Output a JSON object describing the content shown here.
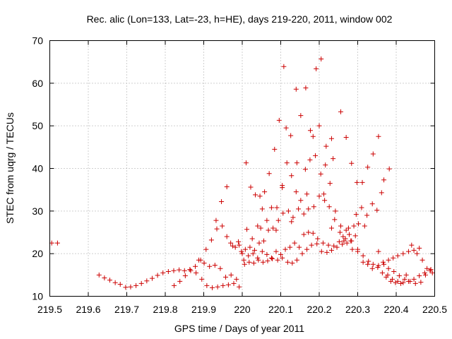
{
  "chart_data": {
    "type": "scatter",
    "title": "Rec. alic (Lon=133, Lat=-23, h=HE), days 219-220, 2011, window 002",
    "xlabel": "GPS time / Days of year 2011",
    "ylabel": "STEC from uqrg / TECUs",
    "xlim": [
      219.5,
      220.5
    ],
    "ylim": [
      10,
      70
    ],
    "xticks": [
      "219.5",
      "219.6",
      "219.7",
      "219.8",
      "219.9",
      "220",
      "220.1",
      "220.2",
      "220.3",
      "220.4",
      "220.5"
    ],
    "yticks": [
      "10",
      "20",
      "30",
      "40",
      "50",
      "60",
      "70"
    ],
    "grid": true,
    "marker": "+",
    "color": "#cc0000",
    "points": [
      [
        219.505,
        22.5
      ],
      [
        219.52,
        22.5
      ],
      [
        219.628,
        15.0
      ],
      [
        219.642,
        14.3
      ],
      [
        219.656,
        13.8
      ],
      [
        219.67,
        13.2
      ],
      [
        219.683,
        12.8
      ],
      [
        219.697,
        12.1
      ],
      [
        219.71,
        12.2
      ],
      [
        219.724,
        12.5
      ],
      [
        219.738,
        13.0
      ],
      [
        219.752,
        13.6
      ],
      [
        219.766,
        14.2
      ],
      [
        219.78,
        14.9
      ],
      [
        219.794,
        15.5
      ],
      [
        219.808,
        15.8
      ],
      [
        219.822,
        16.0
      ],
      [
        219.836,
        16.2
      ],
      [
        219.85,
        16.0
      ],
      [
        219.864,
        16.3
      ],
      [
        219.878,
        17.0
      ],
      [
        219.892,
        18.5
      ],
      [
        219.906,
        21.0
      ],
      [
        219.92,
        23.2
      ],
      [
        219.934,
        25.8
      ],
      [
        219.946,
        32.2
      ],
      [
        219.96,
        35.7
      ],
      [
        219.823,
        12.5
      ],
      [
        219.838,
        13.5
      ],
      [
        219.852,
        14.8
      ],
      [
        219.866,
        16.0
      ],
      [
        219.88,
        15.5
      ],
      [
        219.895,
        14.0
      ],
      [
        219.908,
        12.5
      ],
      [
        219.922,
        12.0
      ],
      [
        219.936,
        12.2
      ],
      [
        219.95,
        12.5
      ],
      [
        219.964,
        12.7
      ],
      [
        219.978,
        13.0
      ],
      [
        219.992,
        12.2
      ],
      [
        219.887,
        18.5
      ],
      [
        219.901,
        17.8
      ],
      [
        219.915,
        17.0
      ],
      [
        219.929,
        17.3
      ],
      [
        219.943,
        16.5
      ],
      [
        219.957,
        14.5
      ],
      [
        219.971,
        15.0
      ],
      [
        219.985,
        14.0
      ],
      [
        219.932,
        27.8
      ],
      [
        219.948,
        26.5
      ],
      [
        219.96,
        24.0
      ],
      [
        219.97,
        22.5
      ],
      [
        219.982,
        21.5
      ],
      [
        219.992,
        22.0
      ],
      [
        220.0,
        20.0
      ],
      [
        219.975,
        21.8
      ],
      [
        219.99,
        22.8
      ],
      [
        219.998,
        20.5
      ],
      [
        220.01,
        41.3
      ],
      [
        220.022,
        35.6
      ],
      [
        220.034,
        33.8
      ],
      [
        220.046,
        33.5
      ],
      [
        220.058,
        34.5
      ],
      [
        220.07,
        38.8
      ],
      [
        220.084,
        44.5
      ],
      [
        220.096,
        51.3
      ],
      [
        220.108,
        63.9
      ],
      [
        220.114,
        49.5
      ],
      [
        220.126,
        47.7
      ],
      [
        220.14,
        58.6
      ],
      [
        220.152,
        52.4
      ],
      [
        220.165,
        58.9
      ],
      [
        220.177,
        48.9
      ],
      [
        220.192,
        63.4
      ],
      [
        220.205,
        65.7
      ],
      [
        220.218,
        45.2
      ],
      [
        220.232,
        47.0
      ],
      [
        220.256,
        53.3
      ],
      [
        220.27,
        47.3
      ],
      [
        220.284,
        41.2
      ],
      [
        220.298,
        36.7
      ],
      [
        220.312,
        36.7
      ],
      [
        220.326,
        40.3
      ],
      [
        220.34,
        43.4
      ],
      [
        220.354,
        47.5
      ],
      [
        220.368,
        37.3
      ],
      [
        220.382,
        39.9
      ],
      [
        220.012,
        25.7
      ],
      [
        220.026,
        23.5
      ],
      [
        220.04,
        26.5
      ],
      [
        220.052,
        30.5
      ],
      [
        220.064,
        27.8
      ],
      [
        220.076,
        30.8
      ],
      [
        220.09,
        30.8
      ],
      [
        220.104,
        35.5
      ],
      [
        220.116,
        41.3
      ],
      [
        220.128,
        38.3
      ],
      [
        220.14,
        34.5
      ],
      [
        220.152,
        32.5
      ],
      [
        220.164,
        39.8
      ],
      [
        220.176,
        42.0
      ],
      [
        220.19,
        43.0
      ],
      [
        220.204,
        38.7
      ],
      [
        220.216,
        40.8
      ],
      [
        220.228,
        36.5
      ],
      [
        220.242,
        30.0
      ],
      [
        220.256,
        26.5
      ],
      [
        220.27,
        25.5
      ],
      [
        220.284,
        23.0
      ],
      [
        220.296,
        29.2
      ],
      [
        220.31,
        30.8
      ],
      [
        220.324,
        29.0
      ],
      [
        220.338,
        31.7
      ],
      [
        220.35,
        30.2
      ],
      [
        220.362,
        34.3
      ],
      [
        220.008,
        21.0
      ],
      [
        220.02,
        21.5
      ],
      [
        220.032,
        20.8
      ],
      [
        220.044,
        22.5
      ],
      [
        220.056,
        23.0
      ],
      [
        220.068,
        25.5
      ],
      [
        220.08,
        26.0
      ],
      [
        220.094,
        27.8
      ],
      [
        220.106,
        29.5
      ],
      [
        220.12,
        30.0
      ],
      [
        220.132,
        28.5
      ],
      [
        220.146,
        30.5
      ],
      [
        220.16,
        29.3
      ],
      [
        220.172,
        30.5
      ],
      [
        220.186,
        31.0
      ],
      [
        220.2,
        33.5
      ],
      [
        220.214,
        32.5
      ],
      [
        220.226,
        31.0
      ],
      [
        220.24,
        28.0
      ],
      [
        220.254,
        25.0
      ],
      [
        220.268,
        23.5
      ],
      [
        220.282,
        23.0
      ],
      [
        220.294,
        24.2
      ],
      [
        220.004,
        18.5
      ],
      [
        220.016,
        19.5
      ],
      [
        220.028,
        20.0
      ],
      [
        220.04,
        19.0
      ],
      [
        220.052,
        20.5
      ],
      [
        220.064,
        19.8
      ],
      [
        220.076,
        19.0
      ],
      [
        220.088,
        20.5
      ],
      [
        220.1,
        19.8
      ],
      [
        220.112,
        21.0
      ],
      [
        220.124,
        21.5
      ],
      [
        220.136,
        22.5
      ],
      [
        220.148,
        21.5
      ],
      [
        220.16,
        24.5
      ],
      [
        220.172,
        25.0
      ],
      [
        220.184,
        24.8
      ],
      [
        220.196,
        23.5
      ],
      [
        220.21,
        22.5
      ],
      [
        220.224,
        22.0
      ],
      [
        220.238,
        21.8
      ],
      [
        220.252,
        22.8
      ],
      [
        220.264,
        23.0
      ],
      [
        220.278,
        24.5
      ],
      [
        220.29,
        26.5
      ],
      [
        220.302,
        27.0
      ],
      [
        220.006,
        17.5
      ],
      [
        220.018,
        18.0
      ],
      [
        220.03,
        17.8
      ],
      [
        220.042,
        18.5
      ],
      [
        220.054,
        18.0
      ],
      [
        220.066,
        18.3
      ],
      [
        220.078,
        18.8
      ],
      [
        220.092,
        18.5
      ],
      [
        220.104,
        19.0
      ],
      [
        220.118,
        18.0
      ],
      [
        220.13,
        17.8
      ],
      [
        220.142,
        18.5
      ],
      [
        220.156,
        20.0
      ],
      [
        220.168,
        21.0
      ],
      [
        220.18,
        22.0
      ],
      [
        220.194,
        22.3
      ],
      [
        220.206,
        20.5
      ],
      [
        220.22,
        20.3
      ],
      [
        220.232,
        20.8
      ],
      [
        220.246,
        21.5
      ],
      [
        220.26,
        22.2
      ],
      [
        220.272,
        22.5
      ],
      [
        220.286,
        21.0
      ],
      [
        220.3,
        20.5
      ],
      [
        220.314,
        19.5
      ],
      [
        220.328,
        18.2
      ],
      [
        220.34,
        17.5
      ],
      [
        220.354,
        17.2
      ],
      [
        220.366,
        18.0
      ],
      [
        220.38,
        18.5
      ],
      [
        220.392,
        19.0
      ],
      [
        220.404,
        19.5
      ],
      [
        220.418,
        20.0
      ],
      [
        220.432,
        20.5
      ],
      [
        220.446,
        20.8
      ],
      [
        220.46,
        21.3
      ],
      [
        220.3,
        21.0
      ],
      [
        220.314,
        18.0
      ],
      [
        220.326,
        17.5
      ],
      [
        220.338,
        16.5
      ],
      [
        220.352,
        16.8
      ],
      [
        220.364,
        15.5
      ],
      [
        220.378,
        15.0
      ],
      [
        220.39,
        14.0
      ],
      [
        220.404,
        13.5
      ],
      [
        220.418,
        13.2
      ],
      [
        220.432,
        13.5
      ],
      [
        220.446,
        14.0
      ],
      [
        220.46,
        14.8
      ],
      [
        220.474,
        15.5
      ],
      [
        220.488,
        16.0
      ],
      [
        220.354,
        20.5
      ],
      [
        220.368,
        17.5
      ],
      [
        220.38,
        16.5
      ],
      [
        220.394,
        15.8
      ],
      [
        220.408,
        14.8
      ],
      [
        220.422,
        14.0
      ],
      [
        220.436,
        13.5
      ],
      [
        220.45,
        13.0
      ],
      [
        220.464,
        13.3
      ],
      [
        220.476,
        15.0
      ],
      [
        220.49,
        16.3
      ],
      [
        220.374,
        14.5
      ],
      [
        220.386,
        13.5
      ],
      [
        220.398,
        13.2
      ],
      [
        220.412,
        13.0
      ],
      [
        220.426,
        15.0
      ],
      [
        220.44,
        22.0
      ],
      [
        220.454,
        20.0
      ],
      [
        220.468,
        18.5
      ],
      [
        220.48,
        16.5
      ],
      [
        220.494,
        15.5
      ],
      [
        220.048,
        26.0
      ],
      [
        220.088,
        25.5
      ],
      [
        220.128,
        27.5
      ],
      [
        220.168,
        34.0
      ],
      [
        220.212,
        34.0
      ],
      [
        220.236,
        42.3
      ],
      [
        220.2,
        50.0
      ],
      [
        220.184,
        47.5
      ],
      [
        220.104,
        36.0
      ],
      [
        220.142,
        41.3
      ],
      [
        220.232,
        26.0
      ],
      [
        220.262,
        24.0
      ],
      [
        220.276,
        26.0
      ],
      [
        220.318,
        26.5
      ]
    ]
  }
}
